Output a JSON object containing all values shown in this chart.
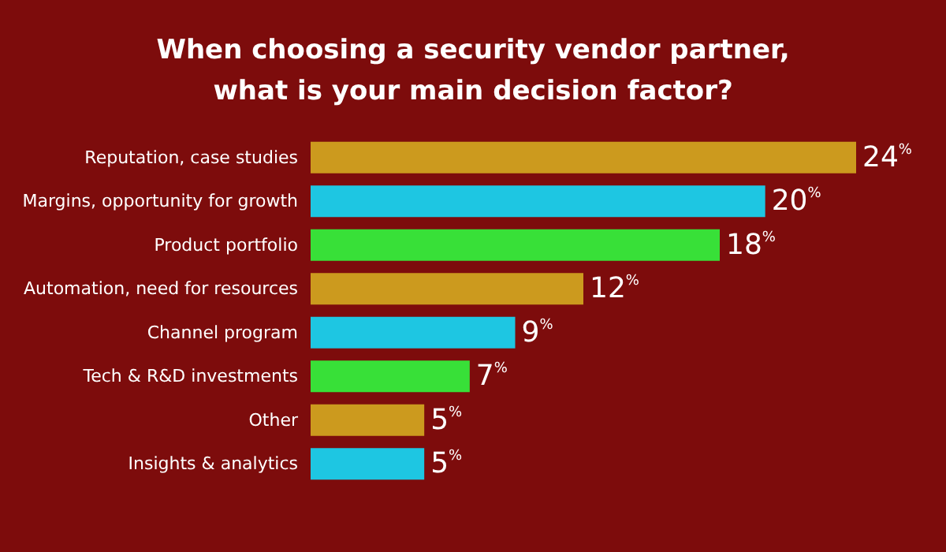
{
  "chart_data": {
    "type": "bar",
    "orientation": "horizontal",
    "tick_labels": false,
    "title": "When choosing a security vendor partner,\nwhat is your main decision factor?",
    "categories": [
      "Reputation, case studies",
      "Margins, opportunity for growth",
      "Product portfolio",
      "Automation, need for resources",
      "Channel program",
      "Tech & R&D investments",
      "Other",
      "Insights & analytics"
    ],
    "values": [
      24,
      20,
      18,
      12,
      9,
      7,
      5,
      5
    ],
    "colors": [
      "#cc9a1e",
      "#1ec6e2",
      "#38e038",
      "#cc9a1e",
      "#1ec6e2",
      "#38e038",
      "#cc9a1e",
      "#1ec6e2"
    ],
    "value_labels": [
      "24%",
      "20%",
      "18%",
      "12%",
      "9%",
      "7%",
      "5%",
      "5%"
    ]
  }
}
